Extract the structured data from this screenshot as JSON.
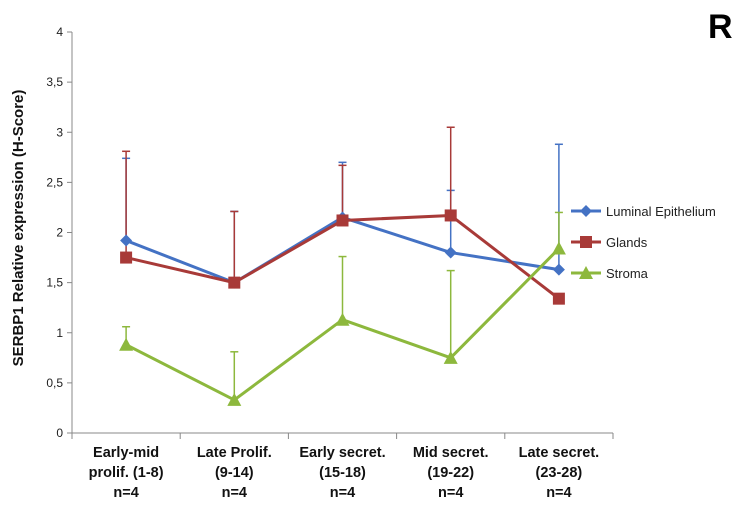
{
  "panel_letter": "R",
  "chart_data": {
    "type": "line",
    "title": "",
    "ylabel": "SERBP1 Relative expression (H-Score)",
    "xlabel": "",
    "ylim": [
      0,
      4
    ],
    "yticks": [
      "0",
      "0,5",
      "1",
      "1,5",
      "2",
      "2,5",
      "3",
      "3,5",
      "4"
    ],
    "categories": [
      [
        "Early-mid",
        "prolif. (1-8)",
        "n=4"
      ],
      [
        "Late Prolif.",
        "(9-14)",
        "n=4"
      ],
      [
        "Early secret.",
        "(15-18)",
        "n=4"
      ],
      [
        "Mid secret.",
        "(19-22)",
        "n=4"
      ],
      [
        "Late secret.",
        "(23-28)",
        "n=4"
      ]
    ],
    "grid": false,
    "legend_position": "right",
    "series": [
      {
        "name": "Luminal Epithelium",
        "color": "#4472C4",
        "marker": "diamond",
        "values": [
          1.92,
          1.5,
          2.15,
          1.8,
          1.63
        ],
        "error_upper": [
          0.82,
          0.71,
          0.55,
          0.62,
          1.25
        ]
      },
      {
        "name": "Glands",
        "color": "#A83A38",
        "marker": "square",
        "values": [
          1.75,
          1.5,
          2.12,
          2.17,
          1.34
        ],
        "error_upper": [
          1.06,
          0.71,
          0.55,
          0.88,
          0
        ]
      },
      {
        "name": "Stroma",
        "color": "#8DB83D",
        "marker": "triangle",
        "values": [
          0.88,
          0.33,
          1.13,
          0.75,
          1.84
        ],
        "error_upper": [
          0.18,
          0.48,
          0.63,
          0.87,
          0.36
        ]
      }
    ]
  }
}
